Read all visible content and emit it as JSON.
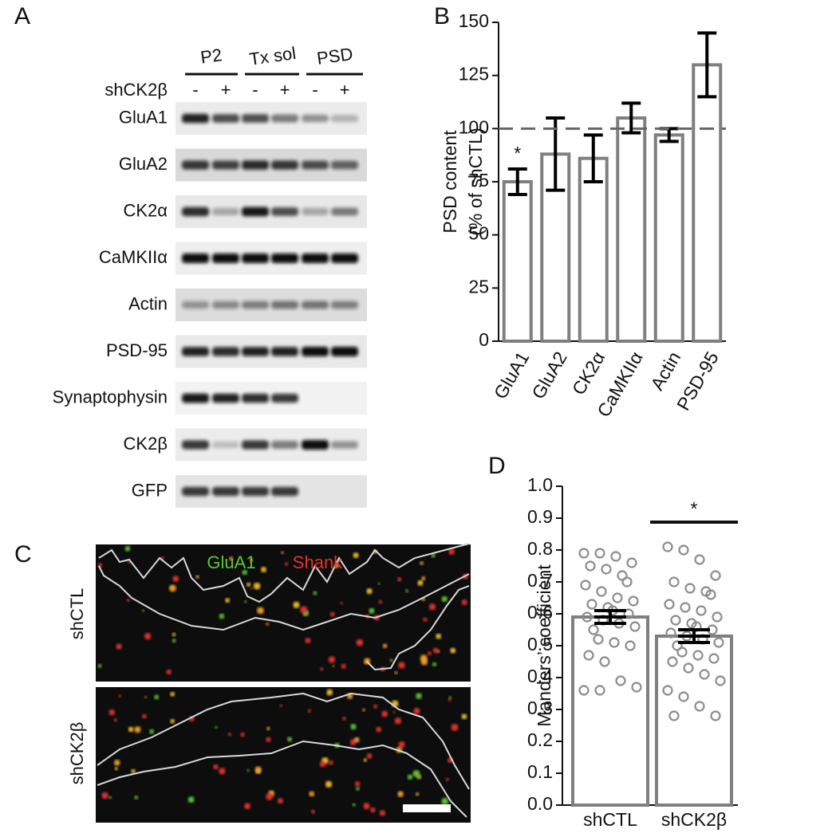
{
  "blot": {
    "panel": "A",
    "groups": [
      "P2",
      "Tx sol",
      "PSD"
    ],
    "row_label": "shCK2β",
    "lanes": [
      "-",
      "+",
      "-",
      "+",
      "-",
      "+"
    ],
    "proteins": [
      "GluA1",
      "GluA2",
      "CK2α",
      "CaMKIIα",
      "Actin",
      "PSD-95",
      "Synaptophysin",
      "CK2β",
      "GFP"
    ]
  },
  "images": {
    "panel": "C",
    "legend": [
      "GluA1",
      "Shank"
    ],
    "rows": [
      "shCTL",
      "shCK2β"
    ]
  },
  "chart_data": [
    {
      "type": "bar",
      "panel": "B",
      "y_label": [
        "PSD content",
        "(% of shCTL)"
      ],
      "categories": [
        "GluA1",
        "GluA2",
        "CK2α",
        "CaMKIIα",
        "Actin",
        "PSD-95"
      ],
      "values": [
        75,
        88,
        86,
        105,
        97,
        130
      ],
      "errors": [
        6,
        17,
        11,
        7,
        3,
        15
      ],
      "reference_line": 100,
      "annotations": [
        {
          "text": "*",
          "x": "GluA1"
        }
      ],
      "ylim": [
        0,
        150
      ],
      "yticks": [
        0,
        25,
        50,
        75,
        100,
        125,
        150
      ],
      "color": "#ffffff",
      "edge_color": "#7f7f7f",
      "error_color": "#000000"
    },
    {
      "type": "bar_points",
      "panel": "D",
      "y_label": "Manders’ coefficient",
      "categories": [
        "shCTL",
        "shCK2β"
      ],
      "values": [
        0.59,
        0.53
      ],
      "errors": [
        0.02,
        0.02
      ],
      "points": [
        [
          0.79,
          0.79,
          0.78,
          0.76,
          0.75,
          0.74,
          0.72,
          0.7,
          0.69,
          0.67,
          0.65,
          0.64,
          0.63,
          0.62,
          0.61,
          0.6,
          0.59,
          0.58,
          0.57,
          0.56,
          0.55,
          0.52,
          0.51,
          0.5,
          0.47,
          0.45,
          0.39,
          0.37,
          0.36,
          0.36
        ],
        [
          0.81,
          0.8,
          0.77,
          0.72,
          0.7,
          0.68,
          0.67,
          0.66,
          0.63,
          0.62,
          0.61,
          0.59,
          0.58,
          0.57,
          0.56,
          0.55,
          0.54,
          0.53,
          0.52,
          0.51,
          0.5,
          0.48,
          0.47,
          0.46,
          0.45,
          0.43,
          0.41,
          0.39,
          0.36,
          0.34,
          0.31,
          0.28,
          0.28
        ]
      ],
      "annotation": "*",
      "ylim": [
        0,
        1
      ],
      "yticks": [
        {
          "value": 0,
          "label": "0.0"
        },
        0.1,
        0.2,
        0.3,
        0.4,
        0.5,
        0.6,
        0.7,
        0.8,
        0.9,
        {
          "value": 1,
          "label": "1.0"
        }
      ],
      "color": "#ffffff",
      "edge_color": "#7f7f7f",
      "error_color": "#000000",
      "point_color": "#8c8c8c"
    }
  ]
}
